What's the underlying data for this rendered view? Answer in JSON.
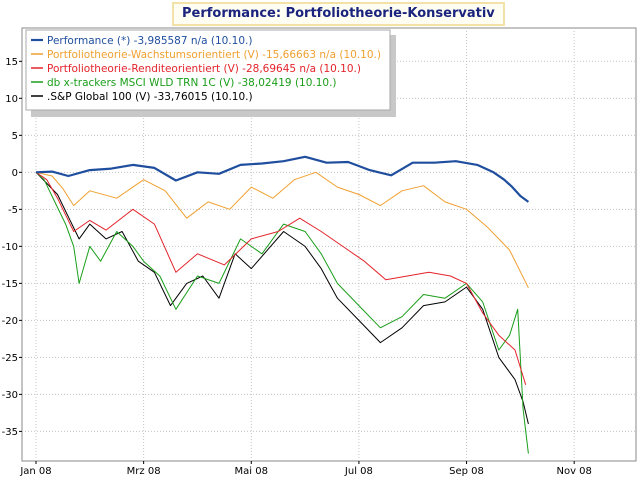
{
  "chart_data": {
    "type": "line",
    "title": "Performance: Portfoliotheorie-Konservativ",
    "xlabel": "",
    "ylabel": "",
    "xlim": [
      0,
      11
    ],
    "ylim": [
      -39,
      19.5
    ],
    "x_ticks": [
      {
        "label": "Jan 08",
        "x": 0
      },
      {
        "label": "Mrz 08",
        "x": 2
      },
      {
        "label": "Mai 08",
        "x": 4
      },
      {
        "label": "Jul 08",
        "x": 6
      },
      {
        "label": "Sep 08",
        "x": 8
      },
      {
        "label": "Nov 08",
        "x": 10
      }
    ],
    "y_ticks": [
      15,
      10,
      5,
      0,
      -5,
      -10,
      -15,
      -20,
      -25,
      -30,
      -35
    ],
    "grid": true,
    "legend_position": "top-left",
    "series": [
      {
        "name": "Performance (*) -3,985587 n/a (10.10.)",
        "color": "#1f4e9e",
        "width": 2.2,
        "points": [
          [
            0,
            0
          ],
          [
            0.3,
            0.1
          ],
          [
            0.6,
            -0.5
          ],
          [
            1,
            0.3
          ],
          [
            1.4,
            0.5
          ],
          [
            1.8,
            1
          ],
          [
            2.2,
            0.6
          ],
          [
            2.6,
            -1.1
          ],
          [
            3,
            0
          ],
          [
            3.4,
            -0.2
          ],
          [
            3.8,
            1
          ],
          [
            4.2,
            1.2
          ],
          [
            4.6,
            1.5
          ],
          [
            5,
            2.1
          ],
          [
            5.4,
            1.3
          ],
          [
            5.8,
            1.4
          ],
          [
            6.2,
            0.3
          ],
          [
            6.6,
            -0.4
          ],
          [
            7,
            1.3
          ],
          [
            7.4,
            1.3
          ],
          [
            7.8,
            1.5
          ],
          [
            8.2,
            1
          ],
          [
            8.5,
            0
          ],
          [
            8.7,
            -1
          ],
          [
            8.85,
            -2
          ],
          [
            9,
            -3.2
          ],
          [
            9.15,
            -4
          ]
        ]
      },
      {
        "name": "Portfoliotheorie-Wachstumsorientiert (V) -15,66663 n/a (10.10.)",
        "color": "#f0a030",
        "width": 1,
        "points": [
          [
            0,
            0
          ],
          [
            0.3,
            -0.5
          ],
          [
            0.5,
            -2.2
          ],
          [
            0.7,
            -4.5
          ],
          [
            1,
            -2.5
          ],
          [
            1.5,
            -3.5
          ],
          [
            2,
            -1
          ],
          [
            2.4,
            -2.5
          ],
          [
            2.8,
            -6.2
          ],
          [
            3.2,
            -4
          ],
          [
            3.6,
            -5
          ],
          [
            4,
            -2
          ],
          [
            4.4,
            -3.5
          ],
          [
            4.8,
            -1
          ],
          [
            5.2,
            0
          ],
          [
            5.6,
            -2
          ],
          [
            6,
            -3
          ],
          [
            6.4,
            -4.5
          ],
          [
            6.8,
            -2.5
          ],
          [
            7.2,
            -1.8
          ],
          [
            7.6,
            -4
          ],
          [
            8,
            -5
          ],
          [
            8.4,
            -7.5
          ],
          [
            8.8,
            -10.5
          ],
          [
            9.15,
            -15.6
          ]
        ]
      },
      {
        "name": "Portfoliotheorie-Renditeorientiert (V) -28,69645 n/a (10.10.)",
        "color": "#e3242b",
        "width": 1,
        "points": [
          [
            0,
            0
          ],
          [
            0.2,
            -1
          ],
          [
            0.4,
            -3.5
          ],
          [
            0.7,
            -8
          ],
          [
            1,
            -6.5
          ],
          [
            1.3,
            -7.8
          ],
          [
            1.8,
            -5
          ],
          [
            2.2,
            -7
          ],
          [
            2.6,
            -13.5
          ],
          [
            3,
            -11
          ],
          [
            3.5,
            -12.5
          ],
          [
            4,
            -9
          ],
          [
            4.5,
            -8
          ],
          [
            4.9,
            -6.2
          ],
          [
            5.3,
            -8
          ],
          [
            5.7,
            -10
          ],
          [
            6.1,
            -12
          ],
          [
            6.5,
            -14.5
          ],
          [
            6.9,
            -14
          ],
          [
            7.3,
            -13.5
          ],
          [
            7.7,
            -14
          ],
          [
            8,
            -15
          ],
          [
            8.3,
            -19
          ],
          [
            8.6,
            -22
          ],
          [
            8.9,
            -24
          ],
          [
            9.1,
            -28.7
          ]
        ]
      },
      {
        "name": "db x-trackers MSCI WLD TRN 1C (V) -38,02419 (10.10.)",
        "color": "#1a9e1a",
        "width": 1,
        "points": [
          [
            0,
            0
          ],
          [
            0.15,
            -1
          ],
          [
            0.35,
            -4
          ],
          [
            0.55,
            -7
          ],
          [
            0.7,
            -10
          ],
          [
            0.8,
            -15
          ],
          [
            1,
            -10
          ],
          [
            1.2,
            -12
          ],
          [
            1.5,
            -8
          ],
          [
            1.8,
            -10
          ],
          [
            2,
            -12
          ],
          [
            2.3,
            -14
          ],
          [
            2.6,
            -18.5
          ],
          [
            3,
            -14
          ],
          [
            3.4,
            -15
          ],
          [
            3.8,
            -9
          ],
          [
            4.2,
            -11
          ],
          [
            4.6,
            -7
          ],
          [
            5,
            -8
          ],
          [
            5.3,
            -11
          ],
          [
            5.6,
            -15
          ],
          [
            6,
            -18
          ],
          [
            6.4,
            -21
          ],
          [
            6.8,
            -19.5
          ],
          [
            7.2,
            -16.5
          ],
          [
            7.6,
            -17
          ],
          [
            8,
            -15
          ],
          [
            8.3,
            -17.5
          ],
          [
            8.6,
            -24
          ],
          [
            8.8,
            -22
          ],
          [
            8.95,
            -18.5
          ],
          [
            9.05,
            -32
          ],
          [
            9.15,
            -38
          ]
        ]
      },
      {
        "name": ".S&P Global 100 (V) -33,76015 (10.10.)",
        "color": "#000000",
        "width": 1,
        "points": [
          [
            0,
            0
          ],
          [
            0.2,
            -1.5
          ],
          [
            0.4,
            -3
          ],
          [
            0.6,
            -6
          ],
          [
            0.8,
            -9
          ],
          [
            1,
            -7
          ],
          [
            1.3,
            -9
          ],
          [
            1.6,
            -8
          ],
          [
            1.9,
            -12
          ],
          [
            2.2,
            -13.5
          ],
          [
            2.5,
            -18
          ],
          [
            2.8,
            -15
          ],
          [
            3.1,
            -14
          ],
          [
            3.4,
            -17
          ],
          [
            3.7,
            -11
          ],
          [
            4,
            -13
          ],
          [
            4.3,
            -10.5
          ],
          [
            4.6,
            -8
          ],
          [
            5,
            -10
          ],
          [
            5.3,
            -13
          ],
          [
            5.6,
            -17
          ],
          [
            6,
            -20
          ],
          [
            6.4,
            -23
          ],
          [
            6.8,
            -21
          ],
          [
            7.2,
            -18
          ],
          [
            7.6,
            -17.5
          ],
          [
            8,
            -15.5
          ],
          [
            8.3,
            -18.5
          ],
          [
            8.6,
            -25
          ],
          [
            8.9,
            -28
          ],
          [
            9.05,
            -31
          ],
          [
            9.15,
            -34
          ]
        ]
      }
    ]
  }
}
